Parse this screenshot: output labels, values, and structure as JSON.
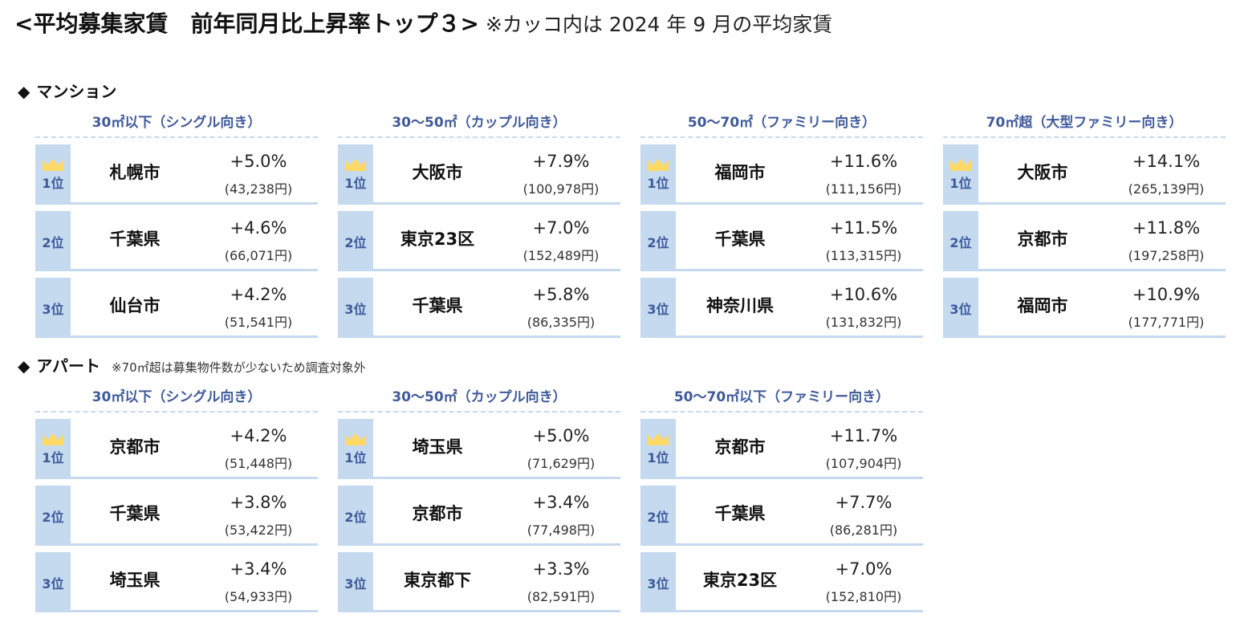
{
  "title": {
    "main": "<平均募集家賃　前年同月比上昇率トップ３>",
    "note": "※カッコ内は 2024 年 9 月の平均家賃"
  },
  "colors": {
    "rank_bg": "#c5d9ef",
    "rank_text": "#3f5a9a",
    "subhead_text": "#3f5a9a",
    "crown": "#ffd966",
    "divider": "#c6d9ee"
  },
  "sections": [
    {
      "label": "マンション",
      "note": "",
      "tables": [
        {
          "subhead": "30㎡以下（シングル向き）",
          "rows": [
            {
              "rank": "1位",
              "city": "札幌市",
              "pct": "+5.0%",
              "rent": "(43,238円)"
            },
            {
              "rank": "2位",
              "city": "千葉県",
              "pct": "+4.6%",
              "rent": "(66,071円)"
            },
            {
              "rank": "3位",
              "city": "仙台市",
              "pct": "+4.2%",
              "rent": "(51,541円)"
            }
          ]
        },
        {
          "subhead": "30～50㎡（カップル向き）",
          "rows": [
            {
              "rank": "1位",
              "city": "大阪市",
              "pct": "+7.9%",
              "rent": "(100,978円)"
            },
            {
              "rank": "2位",
              "city": "東京23区",
              "pct": "+7.0%",
              "rent": "(152,489円)"
            },
            {
              "rank": "3位",
              "city": "千葉県",
              "pct": "+5.8%",
              "rent": "(86,335円)"
            }
          ]
        },
        {
          "subhead": "50～70㎡（ファミリー向き）",
          "rows": [
            {
              "rank": "1位",
              "city": "福岡市",
              "pct": "+11.6%",
              "rent": "(111,156円)"
            },
            {
              "rank": "2位",
              "city": "千葉県",
              "pct": "+11.5%",
              "rent": "(113,315円)"
            },
            {
              "rank": "3位",
              "city": "神奈川県",
              "pct": "+10.6%",
              "rent": "(131,832円)"
            }
          ]
        },
        {
          "subhead": "70㎡超（大型ファミリー向き）",
          "rows": [
            {
              "rank": "1位",
              "city": "大阪市",
              "pct": "+14.1%",
              "rent": "(265,139円)"
            },
            {
              "rank": "2位",
              "city": "京都市",
              "pct": "+11.8%",
              "rent": "(197,258円)"
            },
            {
              "rank": "3位",
              "city": "福岡市",
              "pct": "+10.9%",
              "rent": "(177,771円)"
            }
          ]
        }
      ]
    },
    {
      "label": "アパート",
      "note": "※70㎡超は募集物件数が少ないため調査対象外",
      "tables": [
        {
          "subhead": "30㎡以下（シングル向き）",
          "rows": [
            {
              "rank": "1位",
              "city": "京都市",
              "pct": "+4.2%",
              "rent": "(51,448円)"
            },
            {
              "rank": "2位",
              "city": "千葉県",
              "pct": "+3.8%",
              "rent": "(53,422円)"
            },
            {
              "rank": "3位",
              "city": "埼玉県",
              "pct": "+3.4%",
              "rent": "(54,933円)"
            }
          ]
        },
        {
          "subhead": "30～50㎡（カップル向き）",
          "rows": [
            {
              "rank": "1位",
              "city": "埼玉県",
              "pct": "+5.0%",
              "rent": "(71,629円)"
            },
            {
              "rank": "2位",
              "city": "京都市",
              "pct": "+3.4%",
              "rent": "(77,498円)"
            },
            {
              "rank": "3位",
              "city": "東京都下",
              "pct": "+3.3%",
              "rent": "(82,591円)"
            }
          ]
        },
        {
          "subhead": "50～70㎡以下（ファミリー向き）",
          "rows": [
            {
              "rank": "1位",
              "city": "京都市",
              "pct": "+11.7%",
              "rent": "(107,904円)"
            },
            {
              "rank": "2位",
              "city": "千葉県",
              "pct": "+7.7%",
              "rent": "(86,281円)"
            },
            {
              "rank": "3位",
              "city": "東京23区",
              "pct": "+7.0%",
              "rent": "(152,810円)"
            }
          ]
        }
      ]
    }
  ]
}
